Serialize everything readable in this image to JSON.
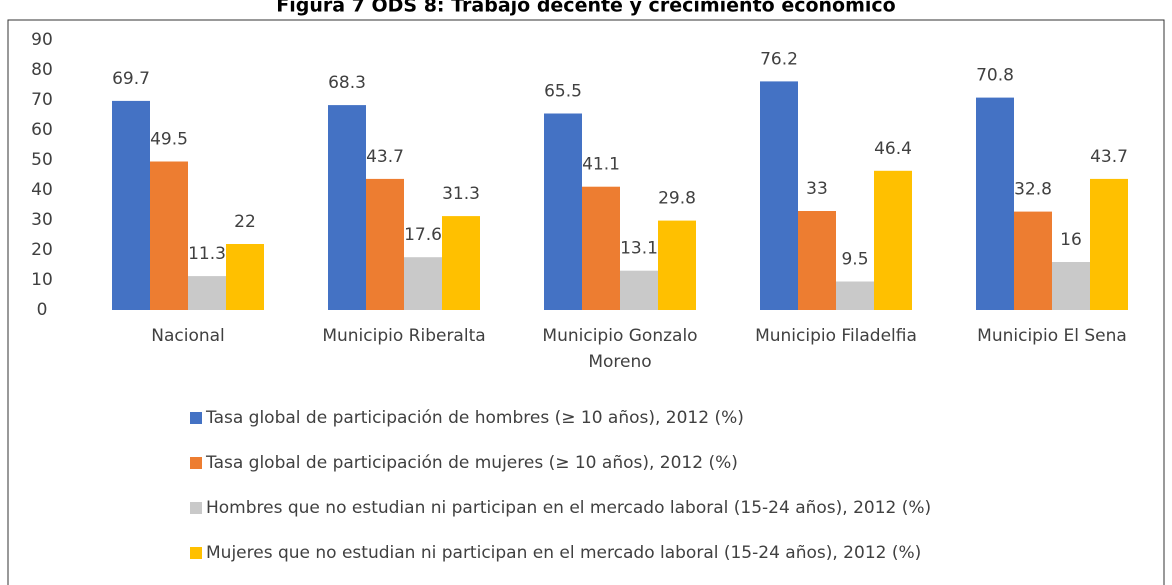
{
  "chart_data": {
    "type": "bar",
    "title": "Figura 7 ODS 8: Trabajo decente y crecimiento económico",
    "categories": [
      "Nacional",
      "Municipio Riberalta",
      "Municipio Gonzalo Moreno",
      "Municipio Filadelfia",
      "Municipio El Sena"
    ],
    "series": [
      {
        "name": "Tasa global de participación de hombres (≥ 10 años), 2012 (%)",
        "color": "#4472c4",
        "values": [
          69.7,
          68.3,
          65.5,
          76.2,
          70.8
        ]
      },
      {
        "name": "Tasa global de participación de mujeres (≥ 10 años), 2012 (%)",
        "color": "#ed7d31",
        "values": [
          49.5,
          43.7,
          41.1,
          33,
          32.8
        ]
      },
      {
        "name": "Hombres que no estudian ni participan en el mercado laboral (15-24 años), 2012 (%)",
        "color": "#c9c9c9",
        "values": [
          11.3,
          17.6,
          13.1,
          9.5,
          16
        ]
      },
      {
        "name": "Mujeres que no estudian ni participan en el mercado laboral (15-24 años), 2012 (%)",
        "color": "#ffc000",
        "values": [
          22,
          31.3,
          29.8,
          46.4,
          43.7
        ]
      }
    ],
    "ylim": [
      0,
      90
    ],
    "yticks": [
      0,
      10,
      20,
      30,
      40,
      50,
      60,
      70,
      80,
      90
    ],
    "grid": false,
    "legend": "bottom"
  }
}
